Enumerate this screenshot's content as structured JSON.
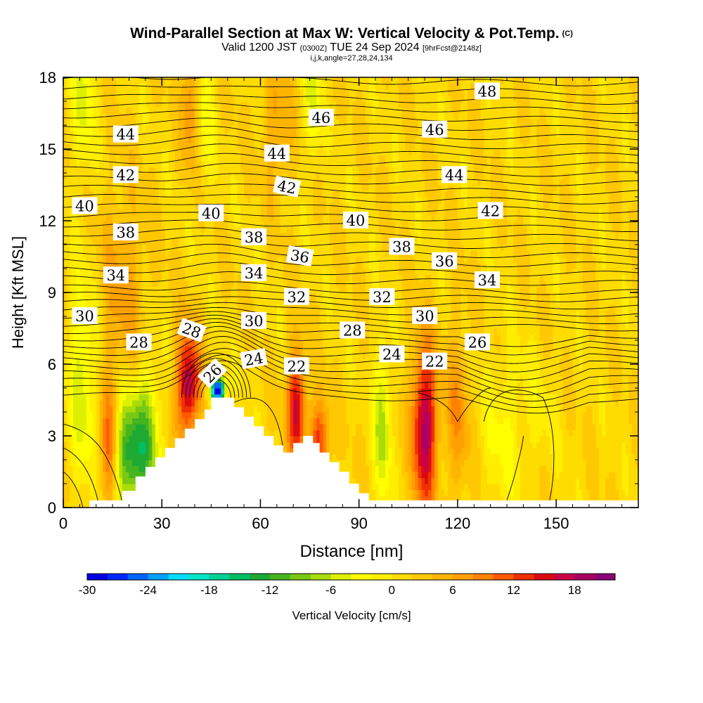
{
  "title": {
    "main": "Wind-Parallel Section at Max W: Vertical Velocity & Pot.Temp.",
    "copyright": "(C)",
    "valid_prefix": "Valid 1200 JST",
    "valid_utc": "(0300Z)",
    "valid_date": "TUE 24 Sep 2024",
    "forecast": "[9hrFcst@2148z]",
    "indices": "i,j,k,angle=27,28,24,134"
  },
  "chart_data": {
    "type": "heatmap",
    "xlabel": "Distance [nm]",
    "ylabel": "Height [Kft MSL]",
    "xlim": [
      0,
      175
    ],
    "ylim": [
      0,
      18
    ],
    "x_ticks": [
      "0",
      "30",
      "60",
      "90",
      "120",
      "150"
    ],
    "x_tick_values": [
      0,
      30,
      60,
      90,
      120,
      150
    ],
    "y_ticks": [
      "0",
      "3",
      "6",
      "9",
      "12",
      "15",
      "18"
    ],
    "y_tick_values": [
      0,
      3,
      6,
      9,
      12,
      15,
      18
    ],
    "colorbar": {
      "label": "Vertical Velocity [cm/s]",
      "tick_labels": [
        "-30",
        "-24",
        "-18",
        "-12",
        "-6",
        "0",
        "6",
        "12",
        "18"
      ],
      "tick_values": [
        -30,
        -24,
        -18,
        -12,
        -6,
        0,
        6,
        12,
        18
      ],
      "min": -30,
      "max": 22,
      "step": 2,
      "colors": [
        "#0000e6",
        "#0028ff",
        "#0064ff",
        "#00a0ff",
        "#00dcff",
        "#00e6c8",
        "#00d296",
        "#00be64",
        "#1eaa32",
        "#46b41e",
        "#78c814",
        "#aadc0a",
        "#dcf000",
        "#ffff00",
        "#ffee00",
        "#ffdc00",
        "#ffc800",
        "#ffb400",
        "#ffa000",
        "#ff8200",
        "#ff5a00",
        "#f03000",
        "#dc0a14",
        "#c8004a",
        "#aa0064",
        "#8c0078"
      ]
    },
    "terrain": [
      [
        0,
        0
      ],
      [
        8,
        0
      ],
      [
        8,
        0.3
      ],
      [
        18,
        0.3
      ],
      [
        18,
        0.7
      ],
      [
        22,
        0.7
      ],
      [
        22,
        1.3
      ],
      [
        25,
        1.3
      ],
      [
        25,
        1.7
      ],
      [
        28,
        1.7
      ],
      [
        28,
        2.1
      ],
      [
        31,
        2.1
      ],
      [
        31,
        2.5
      ],
      [
        34,
        2.5
      ],
      [
        34,
        2.9
      ],
      [
        37,
        2.9
      ],
      [
        37,
        3.3
      ],
      [
        40,
        3.3
      ],
      [
        40,
        3.7
      ],
      [
        43,
        3.7
      ],
      [
        43,
        4.1
      ],
      [
        45,
        4.1
      ],
      [
        45,
        4.6
      ],
      [
        52,
        4.6
      ],
      [
        52,
        4.2
      ],
      [
        55,
        4.2
      ],
      [
        55,
        3.8
      ],
      [
        58,
        3.8
      ],
      [
        58,
        3.4
      ],
      [
        61,
        3.4
      ],
      [
        61,
        3.0
      ],
      [
        64,
        3.0
      ],
      [
        64,
        2.6
      ],
      [
        67,
        2.6
      ],
      [
        67,
        2.3
      ],
      [
        70,
        2.3
      ],
      [
        70,
        2.7
      ],
      [
        73,
        2.7
      ],
      [
        73,
        3.0
      ],
      [
        76,
        3.0
      ],
      [
        76,
        2.7
      ],
      [
        78,
        2.7
      ],
      [
        78,
        2.3
      ],
      [
        81,
        2.3
      ],
      [
        81,
        1.9
      ],
      [
        84,
        1.9
      ],
      [
        84,
        1.5
      ],
      [
        87,
        1.5
      ],
      [
        87,
        1.0
      ],
      [
        90,
        1.0
      ],
      [
        90,
        0.6
      ],
      [
        93,
        0.6
      ],
      [
        93,
        0.3
      ],
      [
        175,
        0.3
      ],
      [
        175,
        0
      ]
    ],
    "w_background": 1.5,
    "w_features": [
      {
        "x": 20,
        "z": 2.3,
        "w": -15,
        "sx": 3.5,
        "sz": 1.8
      },
      {
        "x": 26,
        "z": 3.0,
        "w": -9,
        "sx": 2.5,
        "sz": 2.2
      },
      {
        "x": 6,
        "z": 5.5,
        "w": -7,
        "sx": 3,
        "sz": 3
      },
      {
        "x": 14,
        "z": 2.5,
        "w": 10,
        "sx": 2,
        "sz": 2
      },
      {
        "x": 38,
        "z": 5.2,
        "w": 17,
        "sx": 2.5,
        "sz": 1.6
      },
      {
        "x": 47,
        "z": 4.9,
        "w": -34,
        "sx": 1.5,
        "sz": 0.4
      },
      {
        "x": 71,
        "z": 4.2,
        "w": 15,
        "sx": 2,
        "sz": 1.7
      },
      {
        "x": 78,
        "z": 2.8,
        "w": 12,
        "sx": 2,
        "sz": 1.2
      },
      {
        "x": 97,
        "z": 3.5,
        "w": -9,
        "sx": 1.7,
        "sz": 2.4
      },
      {
        "x": 110,
        "z": 3.4,
        "w": 18,
        "sx": 2.6,
        "sz": 2.4
      },
      {
        "x": 120,
        "z": 4.0,
        "w": 6,
        "sx": 2.5,
        "sz": 2.5
      },
      {
        "x": 133,
        "z": 3.0,
        "w": -3,
        "sx": 4,
        "sz": 2.5
      },
      {
        "x": 6,
        "z": 17,
        "w": -6,
        "sx": 2.5,
        "sz": 2
      },
      {
        "x": 43,
        "z": 16.5,
        "w": -5,
        "sx": 2,
        "sz": 2.2
      },
      {
        "x": 76,
        "z": 17,
        "w": -7,
        "sx": 1.6,
        "sz": 1.8
      },
      {
        "x": 39,
        "z": 17,
        "w": 7,
        "sx": 2,
        "sz": 2
      },
      {
        "x": 18,
        "z": 9,
        "w": 5,
        "sx": 5,
        "sz": 3
      },
      {
        "x": 65,
        "z": 16,
        "w": 5,
        "sx": 3,
        "sz": 2
      },
      {
        "x": 142,
        "z": 4,
        "w": -2,
        "sx": 6,
        "sz": 2
      }
    ],
    "theta_contours": {
      "levels_label": "Pot.Temp.",
      "labels": [
        {
          "text": "48",
          "x": 129,
          "z": 17.4,
          "angle": 0
        },
        {
          "text": "46",
          "x": 78.5,
          "z": 16.3,
          "angle": 0
        },
        {
          "text": "46",
          "x": 113,
          "z": 15.8,
          "angle": 0
        },
        {
          "text": "44",
          "x": 19,
          "z": 15.6,
          "angle": 0
        },
        {
          "text": "44",
          "x": 65,
          "z": 14.8,
          "angle": 0
        },
        {
          "text": "44",
          "x": 119,
          "z": 13.9,
          "angle": 0
        },
        {
          "text": "42",
          "x": 19,
          "z": 13.9,
          "angle": 0
        },
        {
          "text": "42",
          "x": 68,
          "z": 13.4,
          "angle": 12
        },
        {
          "text": "42",
          "x": 130,
          "z": 12.4,
          "angle": 0
        },
        {
          "text": "40",
          "x": 6.5,
          "z": 12.6,
          "angle": 0
        },
        {
          "text": "40",
          "x": 45,
          "z": 12.3,
          "angle": 0
        },
        {
          "text": "40",
          "x": 89,
          "z": 12.0,
          "angle": 0
        },
        {
          "text": "38",
          "x": 19,
          "z": 11.5,
          "angle": 0
        },
        {
          "text": "38",
          "x": 58,
          "z": 11.3,
          "angle": 0
        },
        {
          "text": "38",
          "x": 103,
          "z": 10.9,
          "angle": 0
        },
        {
          "text": "36",
          "x": 72,
          "z": 10.5,
          "angle": 10
        },
        {
          "text": "36",
          "x": 116,
          "z": 10.3,
          "angle": 0
        },
        {
          "text": "34",
          "x": 16,
          "z": 9.7,
          "angle": 0
        },
        {
          "text": "34",
          "x": 58,
          "z": 9.8,
          "angle": 0
        },
        {
          "text": "34",
          "x": 129,
          "z": 9.5,
          "angle": 0
        },
        {
          "text": "32",
          "x": 71,
          "z": 8.8,
          "angle": 0
        },
        {
          "text": "32",
          "x": 97,
          "z": 8.8,
          "angle": 0
        },
        {
          "text": "30",
          "x": 6.5,
          "z": 8.0,
          "angle": 0
        },
        {
          "text": "30",
          "x": 58,
          "z": 7.8,
          "angle": 0
        },
        {
          "text": "30",
          "x": 110,
          "z": 8.0,
          "angle": 0
        },
        {
          "text": "28",
          "x": 23,
          "z": 6.9,
          "angle": 0
        },
        {
          "text": "28",
          "x": 39,
          "z": 7.4,
          "angle": 20
        },
        {
          "text": "28",
          "x": 88,
          "z": 7.4,
          "angle": 0
        },
        {
          "text": "26",
          "x": 45.5,
          "z": 5.6,
          "angle": -45
        },
        {
          "text": "26",
          "x": 126,
          "z": 6.9,
          "angle": 0
        },
        {
          "text": "24",
          "x": 58,
          "z": 6.2,
          "angle": -10
        },
        {
          "text": "24",
          "x": 100,
          "z": 6.4,
          "angle": 0
        },
        {
          "text": "22",
          "x": 71,
          "z": 5.9,
          "angle": 0
        },
        {
          "text": "22",
          "x": 113,
          "z": 6.1,
          "angle": 0
        }
      ]
    }
  }
}
